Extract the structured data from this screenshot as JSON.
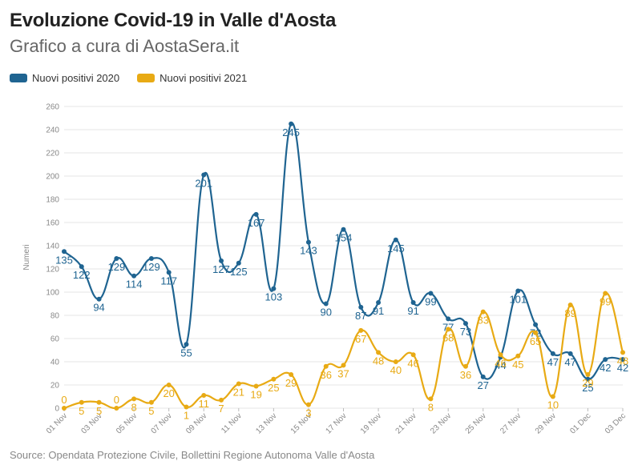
{
  "title": "Evoluzione Covid-19 in Valle d'Aosta",
  "subtitle": "Grafico a cura di AostaSera.it",
  "source": "Source: Opendata Protezione Civile, Bollettini Regione Autonoma Valle d'Aosta",
  "colors": {
    "s2020": "#1f6491",
    "s2021": "#e8aa14",
    "grid": "#e6e6e6",
    "axis": "#888888"
  },
  "chart_data": {
    "type": "line",
    "title": "Evoluzione Covid-19 in Valle d'Aosta",
    "xlabel": "",
    "ylabel": "Numeri",
    "ylim": [
      0,
      260
    ],
    "yticks": [
      0,
      20,
      40,
      60,
      80,
      100,
      120,
      140,
      160,
      180,
      200,
      220,
      240,
      260
    ],
    "grid": true,
    "legend": "top-left",
    "categories": [
      "01 Nov",
      "02 Nov",
      "03 Nov",
      "04 Nov",
      "05 Nov",
      "06 Nov",
      "07 Nov",
      "08 Nov",
      "09 Nov",
      "10 Nov",
      "11 Nov",
      "12 Nov",
      "13 Nov",
      "14 Nov",
      "15 Nov",
      "16 Nov",
      "17 Nov",
      "18 Nov",
      "19 Nov",
      "20 Nov",
      "21 Nov",
      "22 Nov",
      "23 Nov",
      "24 Nov",
      "25 Nov",
      "26 Nov",
      "27 Nov",
      "28 Nov",
      "29 Nov",
      "30 Nov",
      "01 Dec",
      "02 Dec",
      "03 Dec"
    ],
    "tick_labels": [
      "01 Nov",
      "03 Nov",
      "05 Nov",
      "07 Nov",
      "09 Nov",
      "11 Nov",
      "13 Nov",
      "15 Nov",
      "17 Nov",
      "19 Nov",
      "21 Nov",
      "23 Nov",
      "25 Nov",
      "27 Nov",
      "29 Nov",
      "01 Dec",
      "03 Dec"
    ],
    "series": [
      {
        "name": "Nuovi positivi 2020",
        "values": [
          135,
          122,
          94,
          129,
          114,
          129,
          117,
          55,
          201,
          127,
          125,
          167,
          103,
          245,
          143,
          90,
          154,
          87,
          91,
          145,
          91,
          99,
          77,
          73,
          27,
          44,
          101,
          72,
          47,
          47,
          25,
          42,
          42
        ]
      },
      {
        "name": "Nuovi positivi 2021",
        "values": [
          0,
          5,
          5,
          0,
          8,
          5,
          20,
          1,
          11,
          7,
          21,
          19,
          25,
          29,
          3,
          36,
          37,
          67,
          48,
          40,
          46,
          8,
          68,
          36,
          83,
          46,
          45,
          65,
          10,
          89,
          29,
          99,
          48
        ]
      }
    ]
  }
}
